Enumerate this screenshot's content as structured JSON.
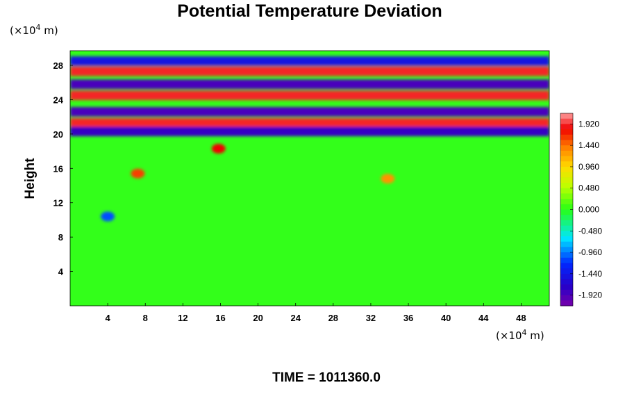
{
  "chart_data": {
    "type": "heatmap",
    "title": "Potential Temperature Deviation",
    "ylabel": "Height",
    "y_units_prefix": "(×10",
    "y_units_exp": "4",
    "y_units_suffix": " m)",
    "x_units_prefix": "(×10",
    "x_units_exp": "4",
    "x_units_suffix": " m)",
    "xlim": [
      0,
      51
    ],
    "ylim": [
      0,
      29.7
    ],
    "x_ticks": [
      4,
      8,
      12,
      16,
      20,
      24,
      28,
      32,
      36,
      40,
      44,
      48
    ],
    "y_ticks": [
      4,
      8,
      12,
      16,
      20,
      24,
      28
    ],
    "colorbar": {
      "min": -2.16,
      "max": 2.16,
      "tick_values": [
        1.92,
        1.44,
        0.96,
        0.48,
        0.0,
        -0.48,
        -0.96,
        -1.44,
        -1.92
      ],
      "tick_labels": [
        "1.920",
        "1.440",
        "0.960",
        "0.480",
        "0.000",
        "-0.480",
        "-0.960",
        "-1.440",
        "-1.920"
      ]
    },
    "time_label": "TIME = 1011360.0",
    "features": {
      "stratospheric_bands": [
        {
          "y": 21.3,
          "value": 1.9
        },
        {
          "y": 22.6,
          "value": -1.9
        },
        {
          "y": 20.3,
          "value": -1.8
        },
        {
          "y": 24.5,
          "value": 1.9
        },
        {
          "y": 25.8,
          "value": -1.9
        },
        {
          "y": 27.3,
          "value": 1.9
        },
        {
          "y": 28.5,
          "value": -1.5
        }
      ],
      "tropospheric_disturbances": [
        {
          "x": 7.2,
          "y": 15.4,
          "value": 1.6
        },
        {
          "x": 15.8,
          "y": 18.3,
          "value": 1.8
        },
        {
          "x": 33.8,
          "y": 14.8,
          "value": 1.3
        },
        {
          "x": 4.0,
          "y": 10.4,
          "value": -1.1
        }
      ]
    }
  }
}
